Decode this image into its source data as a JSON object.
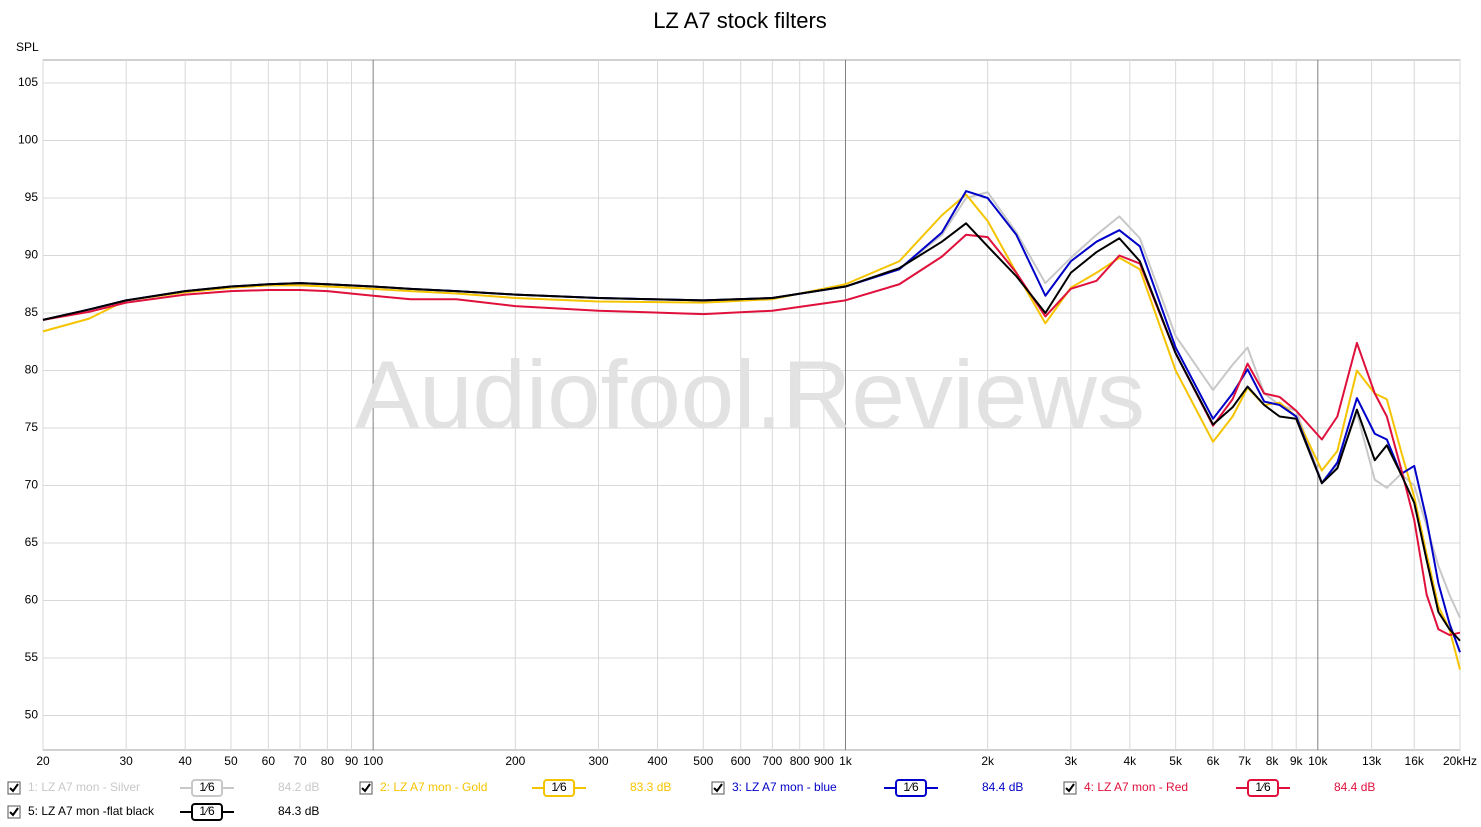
{
  "chart_data": {
    "type": "line",
    "title": "LZ A7 stock filters",
    "y_label": "SPL",
    "watermark": "Audiofool.Reviews",
    "log_x": true,
    "grid": true,
    "xlim": [
      20,
      20000
    ],
    "ylim": [
      47,
      107
    ],
    "xticks": [
      20,
      30,
      40,
      50,
      60,
      70,
      80,
      90,
      100,
      200,
      300,
      400,
      500,
      600,
      700,
      800,
      900,
      {
        "value": 1000,
        "label": "1k"
      },
      {
        "value": 2000,
        "label": "2k"
      },
      {
        "value": 3000,
        "label": "3k"
      },
      {
        "value": 4000,
        "label": "4k"
      },
      {
        "value": 5000,
        "label": "5k"
      },
      {
        "value": 6000,
        "label": "6k"
      },
      {
        "value": 7000,
        "label": "7k"
      },
      {
        "value": 8000,
        "label": "8k"
      },
      {
        "value": 9000,
        "label": "9k"
      },
      {
        "value": 10000,
        "label": "10k"
      },
      {
        "value": 13000,
        "label": "13k"
      },
      {
        "value": 16000,
        "label": "16k"
      },
      {
        "value": 20000,
        "label": "20kHz"
      }
    ],
    "yticks": [
      50,
      55,
      60,
      65,
      70,
      75,
      80,
      85,
      90,
      95,
      100,
      105
    ],
    "x": [
      20,
      25,
      30,
      40,
      50,
      60,
      70,
      80,
      100,
      120,
      150,
      200,
      300,
      500,
      700,
      1000,
      1300,
      1600,
      1800,
      2000,
      2300,
      2650,
      3000,
      3400,
      3800,
      4200,
      5000,
      6000,
      6600,
      7100,
      7700,
      8300,
      9000,
      10200,
      11000,
      12100,
      13200,
      14000,
      15000,
      16000,
      17000,
      18000,
      19000,
      20000
    ],
    "series": [
      {
        "name": "1: LZ A7 mon - Silver",
        "color": "#c8c8c8",
        "smoothing": "1⁄6",
        "level": "84.2 dB",
        "values": [
          84.4,
          85.3,
          86.1,
          86.9,
          87.3,
          87.5,
          87.6,
          87.5,
          87.3,
          87.1,
          86.9,
          86.6,
          86.3,
          86.1,
          86.3,
          87.3,
          88.8,
          91.8,
          95.0,
          95.5,
          92.0,
          87.6,
          89.8,
          91.8,
          93.4,
          91.5,
          83.0,
          78.3,
          80.5,
          82.0,
          78.0,
          77.0,
          76.5,
          70.3,
          71.8,
          76.3,
          70.5,
          69.8,
          71.0,
          70.0,
          66.5,
          63.0,
          60.5,
          58.5
        ]
      },
      {
        "name": "2: LZ A7 mon - Gold",
        "color": "#f5c400",
        "smoothing": "1⁄6",
        "level": "83.3 dB",
        "values": [
          83.4,
          84.5,
          86.1,
          86.8,
          87.2,
          87.4,
          87.4,
          87.3,
          87.1,
          86.9,
          86.7,
          86.3,
          86.0,
          85.9,
          86.2,
          87.5,
          89.5,
          93.5,
          95.3,
          93.0,
          88.5,
          84.1,
          87.2,
          88.5,
          89.8,
          88.8,
          80.0,
          73.8,
          76.0,
          78.5,
          77.0,
          77.2,
          76.0,
          71.3,
          73.0,
          80.0,
          78.0,
          77.5,
          73.0,
          69.0,
          64.0,
          59.5,
          57.5,
          54.0
        ]
      },
      {
        "name": "3: LZ A7 mon - blue",
        "color": "#0000c8",
        "smoothing": "1⁄6",
        "level": "84.4 dB",
        "values": [
          84.4,
          85.3,
          86.1,
          86.9,
          87.3,
          87.5,
          87.6,
          87.5,
          87.3,
          87.1,
          86.9,
          86.6,
          86.3,
          86.1,
          86.3,
          87.3,
          88.8,
          92.0,
          95.6,
          95.0,
          91.8,
          86.5,
          89.5,
          91.2,
          92.2,
          90.8,
          82.0,
          75.8,
          78.0,
          80.1,
          77.3,
          77.0,
          76.0,
          70.2,
          72.0,
          77.6,
          74.5,
          74.0,
          71.0,
          71.7,
          67.0,
          61.5,
          58.0,
          55.5
        ]
      },
      {
        "name": "4: LZ A7 mon - Red",
        "color": "#e0103c",
        "smoothing": "1⁄6",
        "level": "84.4 dB",
        "values": [
          84.4,
          85.1,
          85.9,
          86.6,
          86.9,
          87.0,
          87.0,
          86.9,
          86.5,
          86.2,
          86.2,
          85.6,
          85.2,
          84.9,
          85.2,
          86.1,
          87.5,
          89.9,
          91.8,
          91.6,
          88.5,
          84.7,
          87.1,
          87.8,
          90.0,
          89.3,
          81.5,
          75.2,
          77.5,
          80.6,
          78.0,
          77.7,
          76.5,
          74.0,
          76.0,
          82.4,
          78.0,
          76.0,
          71.5,
          67.0,
          60.5,
          57.5,
          57.0,
          57.2
        ]
      },
      {
        "name": "5: LZ A7 mon -flat black",
        "color": "#000000",
        "smoothing": "1⁄6",
        "level": "84.3 dB",
        "values": [
          84.4,
          85.3,
          86.1,
          86.9,
          87.3,
          87.5,
          87.6,
          87.5,
          87.3,
          87.1,
          86.9,
          86.6,
          86.3,
          86.1,
          86.3,
          87.3,
          88.9,
          91.2,
          92.8,
          90.8,
          88.2,
          85.0,
          88.5,
          90.3,
          91.5,
          89.5,
          81.5,
          75.3,
          76.8,
          78.6,
          77.0,
          76.0,
          75.8,
          70.2,
          71.5,
          76.6,
          72.2,
          73.5,
          71.0,
          68.5,
          63.5,
          59.0,
          57.5,
          56.5
        ]
      }
    ]
  }
}
